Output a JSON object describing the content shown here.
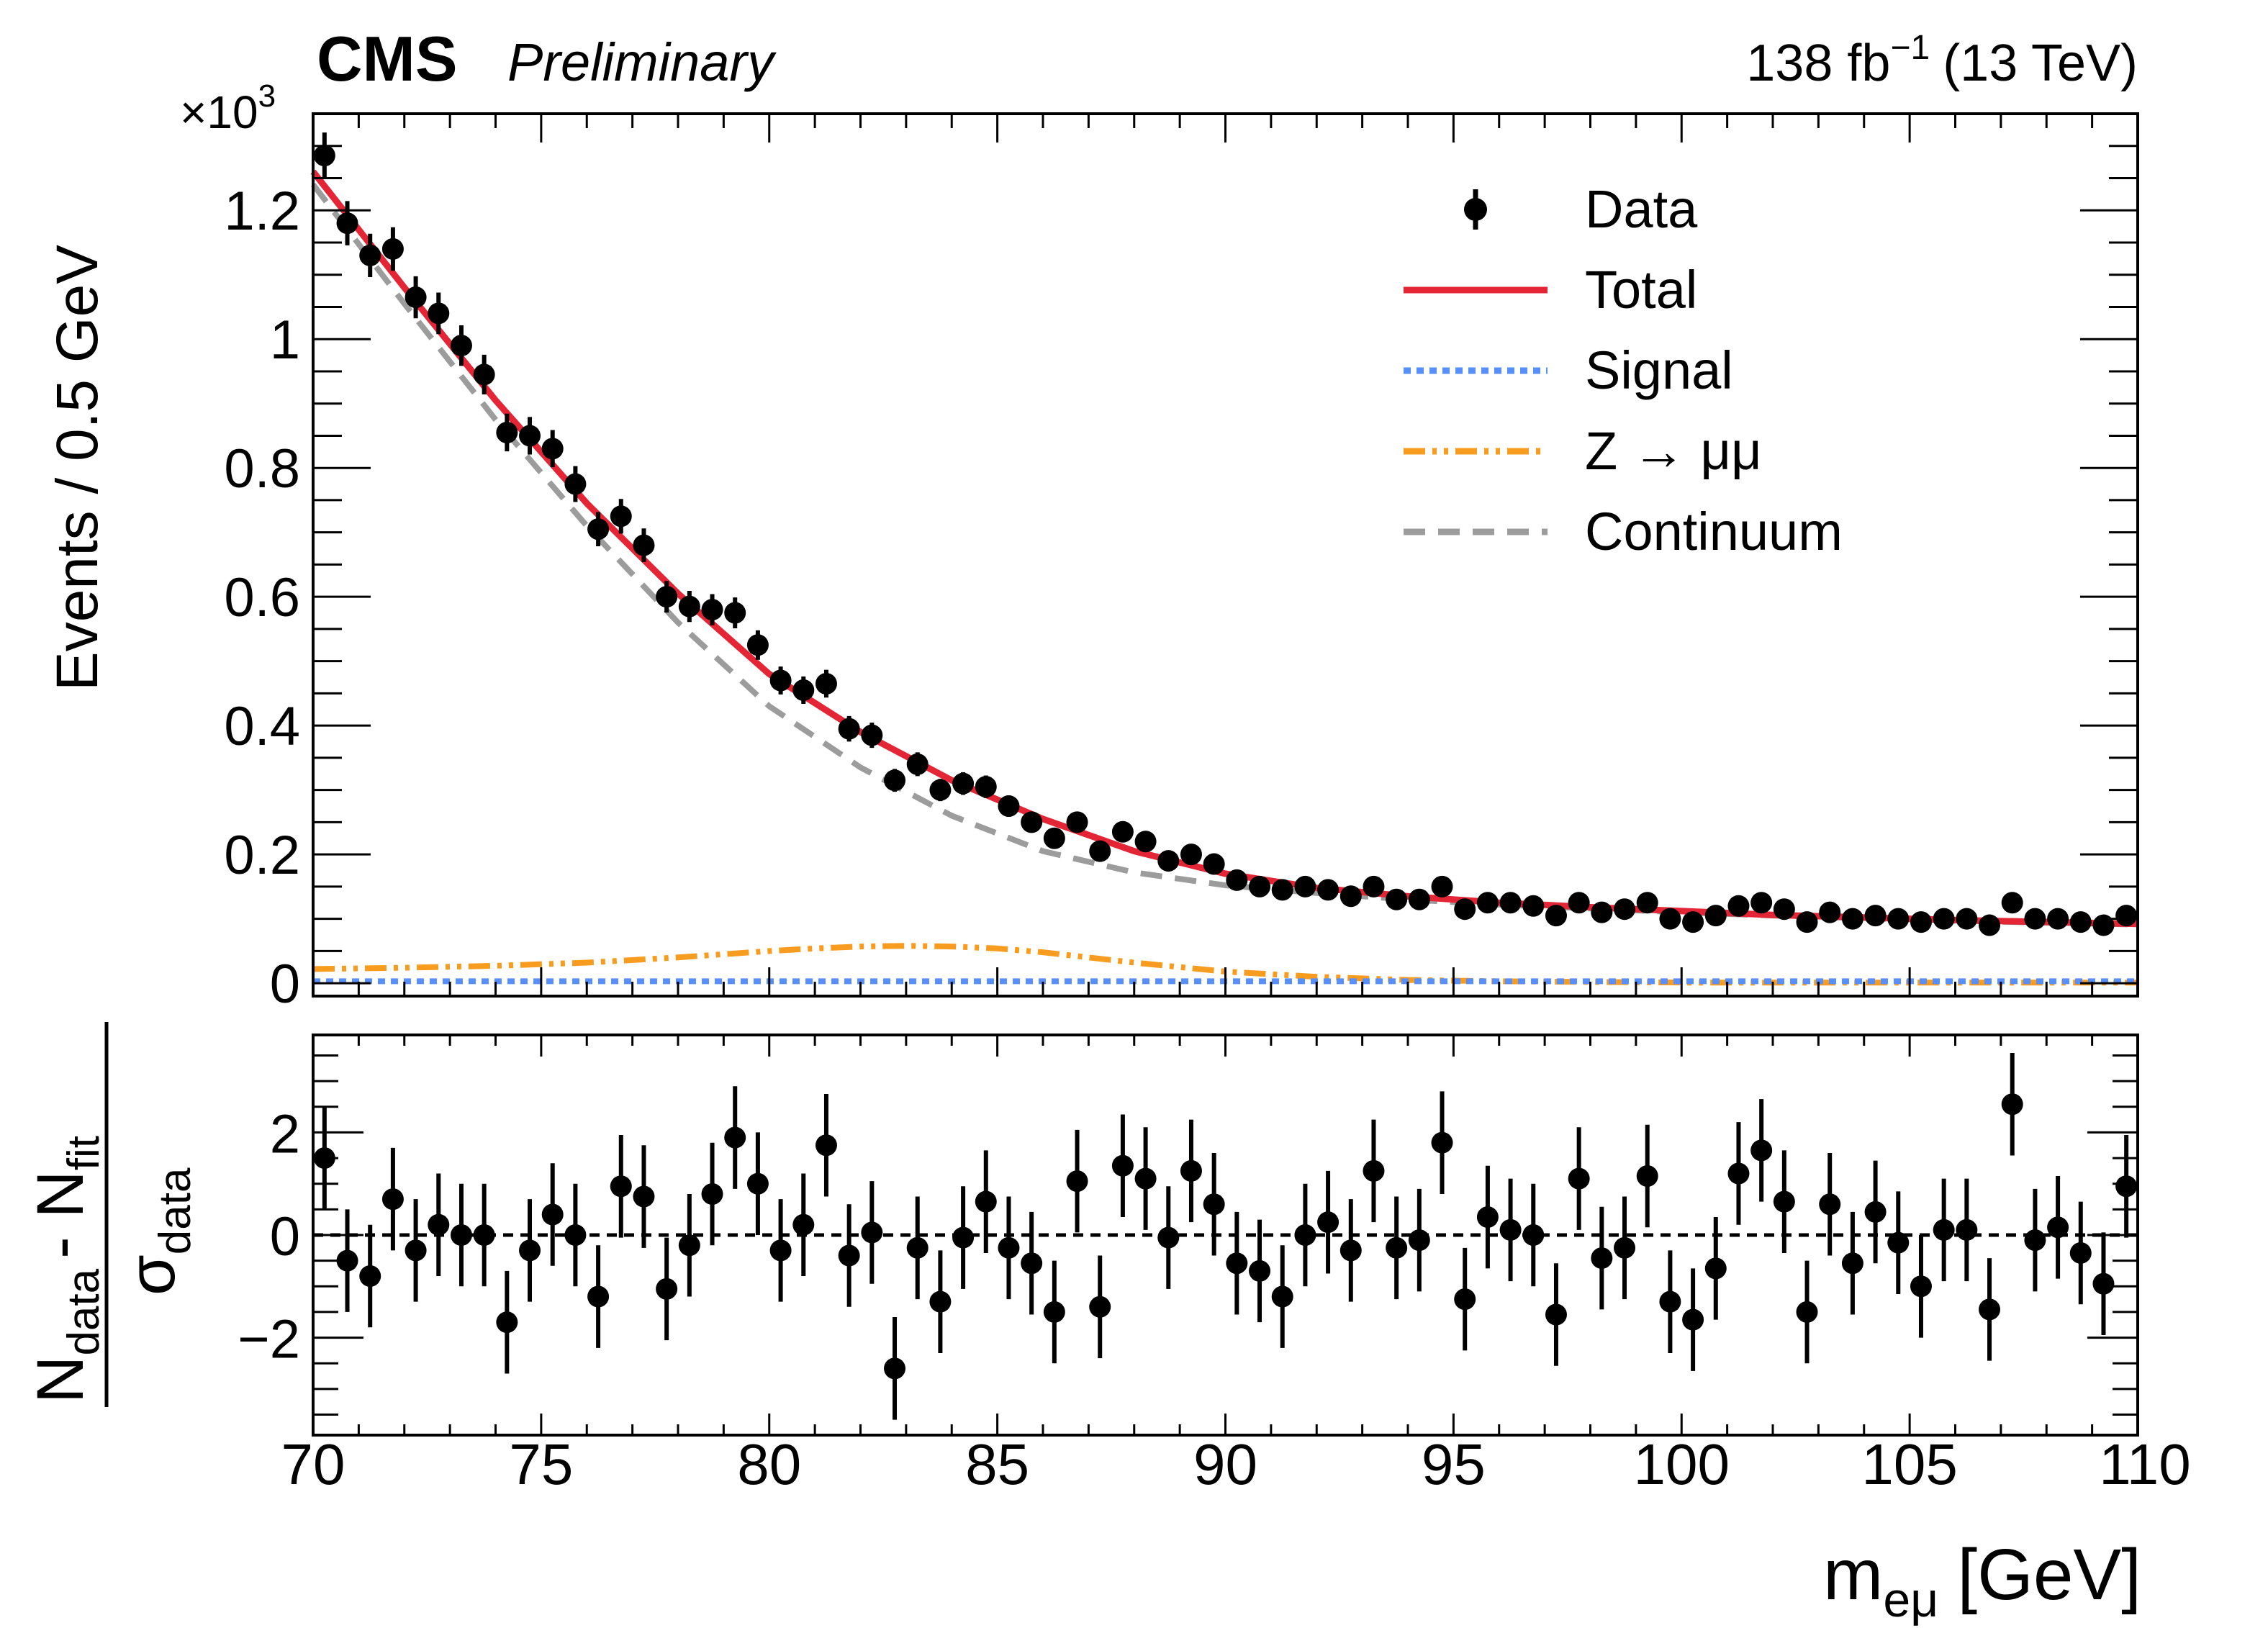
{
  "header": {
    "experiment": "CMS",
    "status": "Preliminary",
    "lumi_prefix": "138 fb",
    "lumi_exponent": "−1",
    "lumi_energy": "(13 TeV)"
  },
  "colors": {
    "data": "#000000",
    "total": "#e42536",
    "signal": "#5790fc",
    "zmumu": "#f89c20",
    "continuum": "#9c9c9c"
  },
  "chart_data": {
    "type": "scatter",
    "x": [
      70.25,
      70.75,
      71.25,
      71.75,
      72.25,
      72.75,
      73.25,
      73.75,
      74.25,
      74.75,
      75.25,
      75.75,
      76.25,
      76.75,
      77.25,
      77.75,
      78.25,
      78.75,
      79.25,
      79.75,
      80.25,
      80.75,
      81.25,
      81.75,
      82.25,
      82.75,
      83.25,
      83.75,
      84.25,
      84.75,
      85.25,
      85.75,
      86.25,
      86.75,
      87.25,
      87.75,
      88.25,
      88.75,
      89.25,
      89.75,
      90.25,
      90.75,
      91.25,
      91.75,
      92.25,
      92.75,
      93.25,
      93.75,
      94.25,
      94.75,
      95.25,
      95.75,
      96.25,
      96.75,
      97.25,
      97.75,
      98.25,
      98.75,
      99.25,
      99.75,
      100.25,
      100.75,
      101.25,
      101.75,
      102.25,
      102.75,
      103.25,
      103.75,
      104.25,
      104.75,
      105.25,
      105.75,
      106.25,
      106.75,
      107.25,
      107.75,
      108.25,
      108.75,
      109.25,
      109.75
    ],
    "top_panel": {
      "ylabel": "Events / 0.5 GeV",
      "multiplier": "×10",
      "multiplier_exponent": "3",
      "ylim": [
        -0.02,
        1.35
      ],
      "yticks": [
        0,
        0.2,
        0.4,
        0.6,
        0.8,
        1,
        1.2
      ],
      "ytick_labels": [
        "0",
        "0.2",
        "0.4",
        "0.6",
        "0.8",
        "1",
        "1.2"
      ],
      "legend_position": "top-right",
      "legend": [
        "Data",
        "Total",
        "Signal",
        "Z → μμ",
        "Continuum"
      ],
      "series": [
        {
          "name": "Data",
          "style": "points-with-errors",
          "values": [
            1.285,
            1.18,
            1.13,
            1.14,
            1.065,
            1.04,
            0.99,
            0.945,
            0.855,
            0.85,
            0.83,
            0.775,
            0.705,
            0.725,
            0.68,
            0.6,
            0.585,
            0.58,
            0.575,
            0.525,
            0.47,
            0.455,
            0.465,
            0.395,
            0.385,
            0.315,
            0.34,
            0.3,
            0.31,
            0.305,
            0.275,
            0.25,
            0.225,
            0.25,
            0.205,
            0.235,
            0.22,
            0.19,
            0.2,
            0.185,
            0.16,
            0.15,
            0.145,
            0.15,
            0.145,
            0.135,
            0.15,
            0.13,
            0.13,
            0.15,
            0.115,
            0.125,
            0.125,
            0.12,
            0.105,
            0.125,
            0.11,
            0.115,
            0.125,
            0.1,
            0.095,
            0.105,
            0.12,
            0.125,
            0.115,
            0.095,
            0.11,
            0.1,
            0.105,
            0.1,
            0.095,
            0.1,
            0.1,
            0.09,
            0.125,
            0.1,
            0.1,
            0.095,
            0.09,
            0.105
          ]
        },
        {
          "name": "Total",
          "style": "solid",
          "x": [
            70,
            72,
            74,
            76,
            78,
            80,
            82,
            84,
            86,
            88,
            90,
            92,
            94,
            96,
            98,
            100,
            102,
            104,
            106,
            108,
            110
          ],
          "values": [
            1.26,
            1.08,
            0.905,
            0.745,
            0.605,
            0.48,
            0.39,
            0.315,
            0.255,
            0.205,
            0.17,
            0.148,
            0.135,
            0.125,
            0.118,
            0.112,
            0.106,
            0.102,
            0.098,
            0.095,
            0.092
          ]
        },
        {
          "name": "Signal",
          "style": "dotted",
          "x": [
            70,
            80,
            90,
            100,
            110
          ],
          "values": [
            0.003,
            0.003,
            0.003,
            0.003,
            0.003
          ]
        },
        {
          "name": "Z → μμ",
          "style": "dash-dot-dot",
          "x": [
            70,
            72,
            74,
            76,
            78,
            80,
            81,
            82,
            83,
            84,
            85,
            86,
            87,
            88,
            89,
            90,
            92,
            94,
            96,
            98,
            100,
            105,
            110
          ],
          "values": [
            0.022,
            0.024,
            0.027,
            0.032,
            0.04,
            0.05,
            0.054,
            0.057,
            0.058,
            0.057,
            0.054,
            0.048,
            0.04,
            0.032,
            0.025,
            0.018,
            0.01,
            0.005,
            0.003,
            0.002,
            0.001,
            0.001,
            0.001
          ]
        },
        {
          "name": "Continuum",
          "style": "dashed",
          "x": [
            70,
            72,
            74,
            76,
            78,
            80,
            82,
            84,
            86,
            88,
            90,
            92,
            94,
            96,
            98,
            100,
            102,
            104,
            106,
            108,
            110
          ],
          "values": [
            1.24,
            1.055,
            0.875,
            0.71,
            0.56,
            0.43,
            0.335,
            0.26,
            0.205,
            0.172,
            0.152,
            0.14,
            0.13,
            0.122,
            0.116,
            0.11,
            0.105,
            0.101,
            0.097,
            0.094,
            0.091
          ]
        }
      ]
    },
    "bottom_panel": {
      "ylabel_num": "N",
      "ylabel_num_sub1": "data",
      "ylabel_minus": "- N",
      "ylabel_num_sub2": "fit",
      "ylabel_den": "σ",
      "ylabel_den_sub": "data",
      "ylim": [
        -3.9,
        3.9
      ],
      "yticks": [
        -2,
        0,
        2
      ],
      "ytick_labels": [
        "−2",
        "0",
        "2"
      ],
      "reference_line": 0,
      "values": [
        1.5,
        -0.5,
        -0.8,
        0.7,
        -0.3,
        0.2,
        0.0,
        0.0,
        -1.7,
        -0.3,
        0.4,
        0.0,
        -1.2,
        0.95,
        0.75,
        -1.05,
        -0.2,
        0.8,
        1.9,
        1.0,
        -0.3,
        0.2,
        1.75,
        -0.4,
        0.05,
        -2.6,
        -0.25,
        -1.3,
        -0.05,
        0.65,
        -0.25,
        -0.55,
        -1.5,
        1.05,
        -1.4,
        1.35,
        1.1,
        -0.05,
        1.25,
        0.6,
        -0.55,
        -0.7,
        -1.2,
        0.0,
        0.25,
        -0.3,
        1.25,
        -0.25,
        -0.1,
        1.8,
        -1.25,
        0.35,
        0.1,
        0.0,
        -1.55,
        1.1,
        -0.45,
        -0.25,
        1.15,
        -1.3,
        -1.65,
        -0.65,
        1.2,
        1.65,
        0.65,
        -1.5,
        0.6,
        -0.55,
        0.45,
        -0.15,
        -1.0,
        0.1,
        0.1,
        -1.45,
        2.55,
        -0.1,
        0.15,
        -0.35,
        -0.95,
        0.95
      ]
    },
    "xlabel": "m",
    "xlabel_sub": "eμ",
    "xlabel_unit": "[GeV]",
    "xlim": [
      70,
      110
    ],
    "xticks": [
      70,
      75,
      80,
      85,
      90,
      95,
      100,
      105,
      110
    ],
    "xtick_labels": [
      "70",
      "75",
      "80",
      "85",
      "90",
      "95",
      "100",
      "105",
      "110"
    ]
  }
}
